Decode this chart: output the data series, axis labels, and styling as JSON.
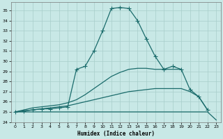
{
  "bg_color": "#c8e8e6",
  "grid_color": "#a8ceca",
  "line_color": "#1a6b6b",
  "xlabel": "Humidex (Indice chaleur)",
  "xlim": [
    -0.5,
    23.5
  ],
  "ylim": [
    24,
    35.8
  ],
  "xticks": [
    0,
    1,
    2,
    3,
    4,
    5,
    6,
    7,
    8,
    9,
    10,
    11,
    12,
    13,
    14,
    15,
    16,
    17,
    18,
    19,
    20,
    21,
    22,
    23
  ],
  "yticks": [
    24,
    25,
    26,
    27,
    28,
    29,
    30,
    31,
    32,
    33,
    34,
    35
  ],
  "line1_x": [
    0,
    1,
    2,
    3,
    4,
    5,
    6,
    7,
    8,
    9,
    10,
    11,
    12,
    13,
    14,
    15,
    16,
    17,
    18,
    19,
    20,
    21,
    22,
    23
  ],
  "line1_y": [
    25.0,
    25.0,
    25.0,
    25.0,
    25.0,
    25.0,
    25.0,
    25.0,
    25.0,
    25.0,
    25.0,
    25.0,
    25.0,
    25.0,
    25.0,
    25.0,
    25.0,
    25.0,
    25.0,
    25.0,
    25.0,
    25.0,
    25.0,
    24.2
  ],
  "line2_x": [
    0,
    1,
    2,
    3,
    4,
    5,
    6,
    7,
    8,
    9,
    10,
    11,
    12,
    13,
    14,
    15,
    16,
    17,
    18,
    19,
    20,
    21,
    22
  ],
  "line2_y": [
    25.0,
    25.1,
    25.2,
    25.3,
    25.4,
    25.5,
    25.6,
    25.8,
    26.0,
    26.2,
    26.4,
    26.6,
    26.8,
    27.0,
    27.1,
    27.2,
    27.3,
    27.3,
    27.3,
    27.3,
    27.0,
    26.5,
    25.2
  ],
  "line3_x": [
    0,
    1,
    2,
    3,
    4,
    5,
    6,
    7,
    8,
    9,
    10,
    11,
    12,
    13,
    14,
    15,
    16,
    17,
    18,
    19
  ],
  "line3_y": [
    25.0,
    25.2,
    25.4,
    25.5,
    25.6,
    25.7,
    25.9,
    26.2,
    26.7,
    27.3,
    27.9,
    28.5,
    28.9,
    29.2,
    29.3,
    29.3,
    29.2,
    29.2,
    29.2,
    29.2
  ],
  "line4_x": [
    0,
    1,
    2,
    3,
    4,
    5,
    6,
    7,
    8,
    9,
    10,
    11,
    12,
    13,
    14,
    15,
    16,
    17,
    18,
    19,
    20,
    21,
    22
  ],
  "line4_y": [
    25.0,
    25.1,
    25.2,
    25.3,
    25.3,
    25.4,
    25.5,
    29.2,
    29.5,
    31.0,
    33.0,
    35.2,
    35.3,
    35.2,
    34.0,
    32.2,
    30.5,
    29.2,
    29.5,
    29.2,
    27.2,
    26.5,
    25.2
  ],
  "lw": 0.9,
  "ms": 2.2
}
